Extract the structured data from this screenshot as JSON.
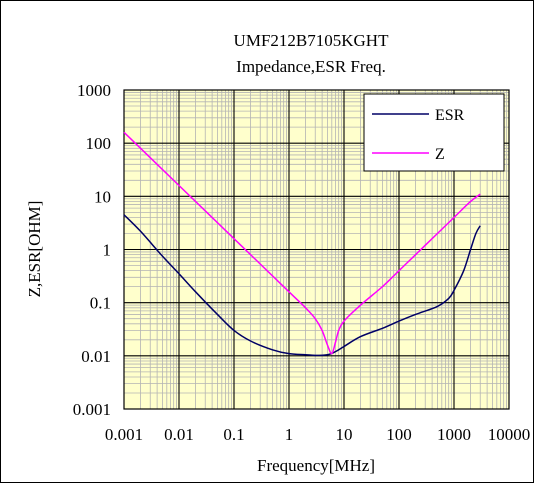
{
  "chart_data": {
    "type": "line",
    "title": "UMF212B7105KGHT",
    "subtitle": "Impedance,ESR  Freq.",
    "xlabel": "Frequency[MHz]",
    "ylabel": "Z,ESR[OHM]",
    "x_scale": "log",
    "y_scale": "log",
    "xlim": [
      0.001,
      10000
    ],
    "ylim": [
      0.001,
      1000
    ],
    "x_tick_labels": [
      "0.001",
      "0.01",
      "0.1",
      "1",
      "10",
      "100",
      "1000",
      "10000"
    ],
    "y_tick_labels": [
      "0.001",
      "0.01",
      "0.1",
      "1",
      "10",
      "100",
      "1000"
    ],
    "grid": true,
    "plot_background": "#ffffcc",
    "legend_position": "top-right",
    "series": [
      {
        "name": "ESR",
        "color": "#000066",
        "points": [
          [
            0.001,
            4.5
          ],
          [
            0.002,
            2.2
          ],
          [
            0.005,
            0.75
          ],
          [
            0.01,
            0.35
          ],
          [
            0.02,
            0.16
          ],
          [
            0.05,
            0.06
          ],
          [
            0.1,
            0.03
          ],
          [
            0.2,
            0.019
          ],
          [
            0.5,
            0.013
          ],
          [
            1,
            0.011
          ],
          [
            2,
            0.0105
          ],
          [
            3,
            0.0102
          ],
          [
            5,
            0.0105
          ],
          [
            7,
            0.012
          ],
          [
            10,
            0.015
          ],
          [
            20,
            0.023
          ],
          [
            50,
            0.033
          ],
          [
            100,
            0.045
          ],
          [
            200,
            0.06
          ],
          [
            500,
            0.085
          ],
          [
            800,
            0.12
          ],
          [
            1000,
            0.17
          ],
          [
            1500,
            0.4
          ],
          [
            2000,
            1.0
          ],
          [
            2500,
            2.0
          ],
          [
            3000,
            2.8
          ]
        ]
      },
      {
        "name": "Z",
        "color": "#ff00ff",
        "points": [
          [
            0.001,
            160
          ],
          [
            0.01,
            16
          ],
          [
            0.1,
            1.6
          ],
          [
            1,
            0.16
          ],
          [
            2,
            0.08
          ],
          [
            3,
            0.05
          ],
          [
            4,
            0.03
          ],
          [
            5,
            0.016
          ],
          [
            6,
            0.011
          ],
          [
            7,
            0.018
          ],
          [
            8,
            0.03
          ],
          [
            10,
            0.045
          ],
          [
            20,
            0.09
          ],
          [
            50,
            0.2
          ],
          [
            100,
            0.4
          ],
          [
            200,
            0.8
          ],
          [
            500,
            2.0
          ],
          [
            1000,
            4.0
          ],
          [
            2000,
            8.0
          ],
          [
            3000,
            11
          ]
        ]
      }
    ]
  }
}
